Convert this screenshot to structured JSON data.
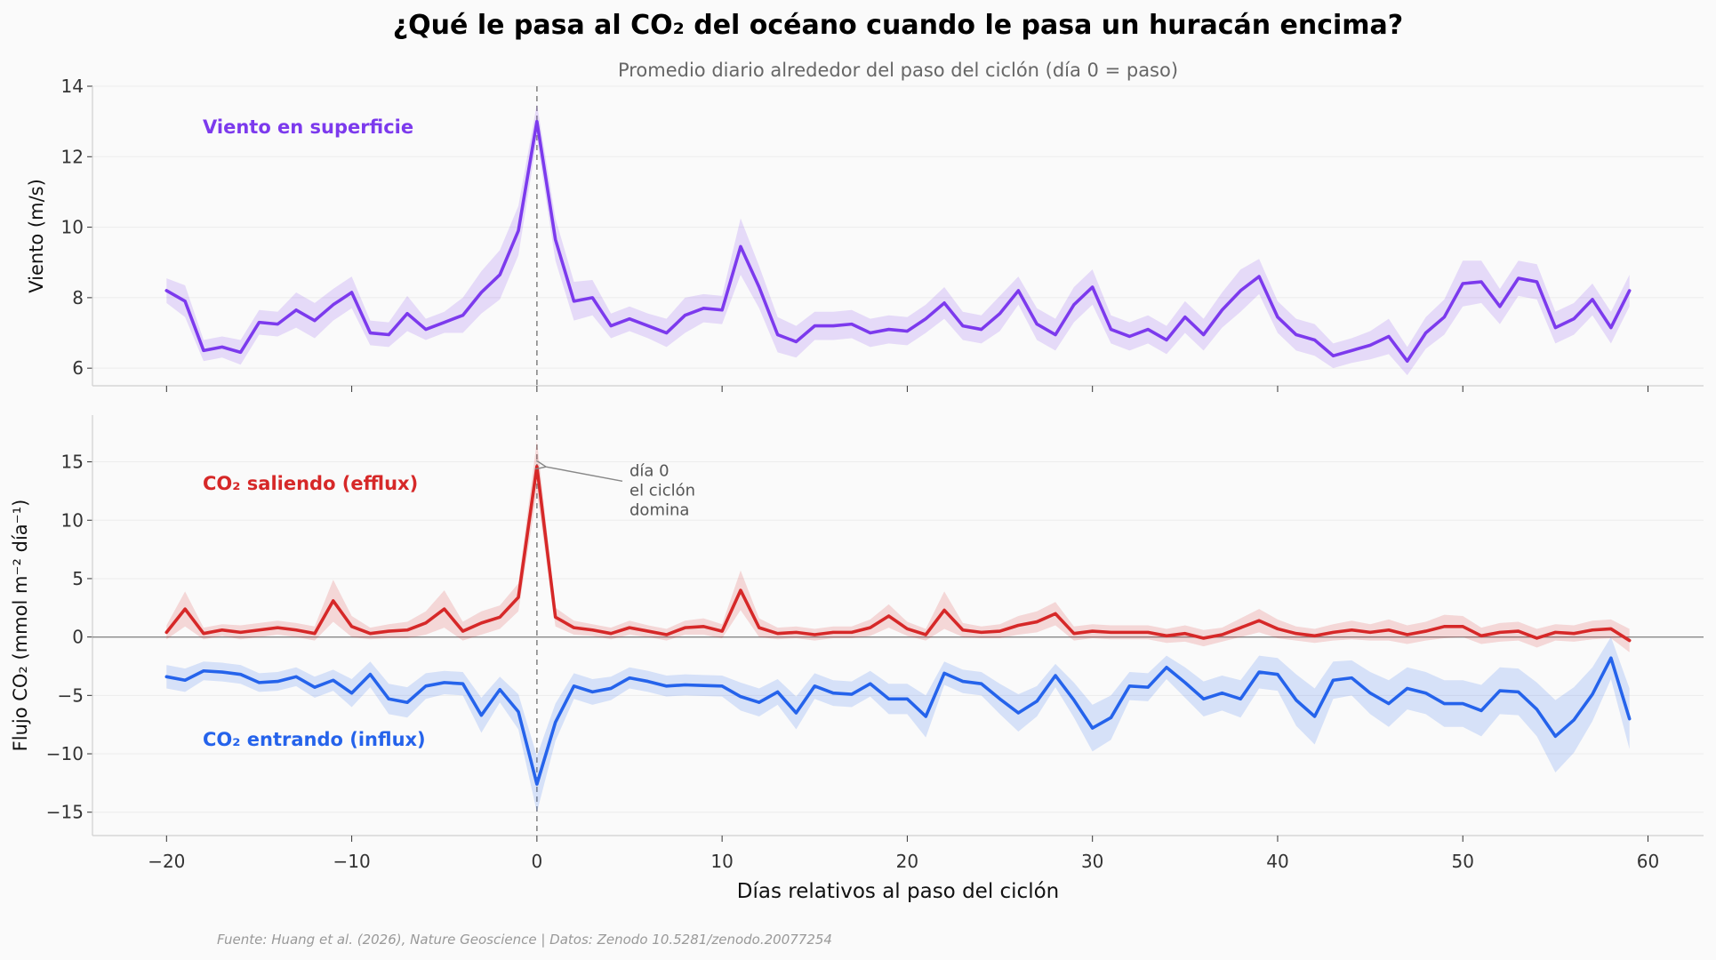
{
  "title": "¿Qué le pasa al CO₂ del océano cuando le pasa un huracán encima?",
  "subtitle": "Promedio diario alrededor del paso del ciclón (día 0 = paso)",
  "source": "Fuente: Huang et al. (2026), Nature Geoscience | Datos: Zenodo 10.5281/zenodo.20077254",
  "colors": {
    "wind": "#7c3aed",
    "efflux": "#d62828",
    "influx": "#2563eb"
  },
  "chart_data": [
    {
      "type": "line",
      "ylabel": "Viento (m/s)",
      "ylim": [
        5.5,
        14
      ],
      "yticks": [
        6,
        8,
        10,
        12,
        14
      ],
      "xlim": [
        -24,
        63
      ],
      "xticks": [
        -20,
        -10,
        0,
        10,
        20,
        30,
        40,
        50,
        60
      ],
      "grid": true,
      "x_start": -20,
      "vline": 0,
      "series": [
        {
          "name": "Viento en superficie",
          "values": [
            8.2,
            7.9,
            6.5,
            6.6,
            6.45,
            7.3,
            7.25,
            7.65,
            7.35,
            7.8,
            8.15,
            7.0,
            6.95,
            7.55,
            7.1,
            7.3,
            7.5,
            8.15,
            8.65,
            9.9,
            13.0,
            9.65,
            7.9,
            8.0,
            7.2,
            7.4,
            7.2,
            7.0,
            7.5,
            7.7,
            7.65,
            9.45,
            8.3,
            6.95,
            6.75,
            7.2,
            7.2,
            7.25,
            7.0,
            7.1,
            7.05,
            7.4,
            7.85,
            7.2,
            7.1,
            7.55,
            8.2,
            7.25,
            6.95,
            7.8,
            8.3,
            7.1,
            6.9,
            7.1,
            6.8,
            7.45,
            6.95,
            7.65,
            8.2,
            8.6,
            7.45,
            6.95,
            6.8,
            6.35,
            6.5,
            6.65,
            6.9,
            6.2,
            7.0,
            7.45,
            8.4,
            8.45,
            7.75,
            8.55,
            8.45,
            7.15,
            7.4,
            7.95,
            7.15,
            8.2
          ],
          "band": [
            0.35,
            0.45,
            0.3,
            0.3,
            0.35,
            0.35,
            0.35,
            0.5,
            0.5,
            0.45,
            0.45,
            0.35,
            0.35,
            0.5,
            0.3,
            0.3,
            0.5,
            0.6,
            0.7,
            0.7,
            0.5,
            0.6,
            0.55,
            0.5,
            0.35,
            0.35,
            0.35,
            0.4,
            0.5,
            0.4,
            0.4,
            0.8,
            0.6,
            0.5,
            0.45,
            0.4,
            0.4,
            0.4,
            0.4,
            0.4,
            0.4,
            0.4,
            0.45,
            0.4,
            0.4,
            0.5,
            0.4,
            0.45,
            0.45,
            0.5,
            0.5,
            0.4,
            0.4,
            0.4,
            0.4,
            0.45,
            0.45,
            0.5,
            0.6,
            0.5,
            0.45,
            0.45,
            0.45,
            0.35,
            0.35,
            0.4,
            0.5,
            0.4,
            0.45,
            0.5,
            0.65,
            0.6,
            0.5,
            0.5,
            0.5,
            0.45,
            0.45,
            0.45,
            0.45,
            0.45
          ]
        }
      ]
    },
    {
      "type": "line",
      "ylabel": "Flujo CO₂ (mmol m⁻² día⁻¹)",
      "ylim": [
        -17,
        19
      ],
      "yticks": [
        -15,
        -10,
        -5,
        0,
        5,
        10,
        15
      ],
      "xlim": [
        -24,
        63
      ],
      "xticks": [
        -20,
        -10,
        0,
        10,
        20,
        30,
        40,
        50,
        60
      ],
      "xlabel": "Días relativos al paso del ciclón",
      "grid": true,
      "x_start": -20,
      "vline": 0,
      "hline": 0,
      "annotation": {
        "lines": [
          "día 0",
          "el ciclón",
          "domina"
        ],
        "x": 0.3,
        "y": 14.6,
        "text_x": 5,
        "text_y": 13.8
      },
      "series": [
        {
          "name": "CO₂ saliendo (efflux)",
          "values": [
            0.4,
            2.4,
            0.3,
            0.6,
            0.4,
            0.6,
            0.8,
            0.6,
            0.3,
            3.1,
            0.9,
            0.3,
            0.5,
            0.6,
            1.2,
            2.4,
            0.5,
            1.2,
            1.7,
            3.4,
            14.6,
            1.7,
            0.8,
            0.6,
            0.3,
            0.8,
            0.5,
            0.2,
            0.8,
            0.9,
            0.5,
            4.0,
            0.8,
            0.3,
            0.4,
            0.2,
            0.4,
            0.4,
            0.8,
            1.8,
            0.7,
            0.2,
            2.3,
            0.6,
            0.4,
            0.5,
            1.0,
            1.3,
            2.0,
            0.3,
            0.5,
            0.4,
            0.4,
            0.4,
            0.1,
            0.3,
            -0.1,
            0.2,
            0.8,
            1.4,
            0.7,
            0.3,
            0.1,
            0.4,
            0.6,
            0.4,
            0.6,
            0.2,
            0.5,
            0.9,
            0.9,
            0.1,
            0.4,
            0.5,
            -0.1,
            0.4,
            0.3,
            0.6,
            0.7,
            -0.3
          ],
          "band": [
            0.6,
            1.5,
            0.5,
            0.5,
            0.6,
            0.6,
            0.6,
            0.6,
            0.6,
            1.8,
            0.9,
            0.5,
            0.6,
            0.7,
            1.0,
            1.6,
            0.8,
            1.0,
            1.0,
            1.2,
            2.2,
            0.8,
            0.6,
            0.5,
            0.5,
            0.6,
            0.5,
            0.5,
            0.6,
            0.7,
            0.6,
            1.7,
            0.8,
            0.5,
            0.5,
            0.5,
            0.5,
            0.5,
            0.7,
            1.0,
            0.6,
            0.5,
            1.6,
            0.6,
            0.5,
            0.6,
            0.8,
            0.9,
            1.0,
            0.6,
            0.6,
            0.6,
            0.6,
            0.6,
            0.6,
            0.7,
            0.7,
            0.6,
            0.8,
            1.0,
            0.8,
            0.6,
            0.6,
            0.7,
            0.8,
            0.7,
            0.9,
            0.8,
            0.8,
            1.0,
            0.9,
            0.7,
            0.8,
            0.8,
            0.8,
            0.7,
            0.7,
            0.8,
            0.8,
            1.0
          ]
        },
        {
          "name": "CO₂ entrando (influx)",
          "values": [
            -3.4,
            -3.7,
            -2.9,
            -3.0,
            -3.2,
            -3.9,
            -3.8,
            -3.4,
            -4.3,
            -3.7,
            -4.8,
            -3.2,
            -5.3,
            -5.6,
            -4.2,
            -3.9,
            -4.0,
            -6.7,
            -4.5,
            -6.4,
            -12.6,
            -7.3,
            -4.2,
            -4.7,
            -4.4,
            -3.5,
            -3.8,
            -4.2,
            -4.1,
            -4.15,
            -4.2,
            -5.1,
            -5.6,
            -4.7,
            -6.5,
            -4.2,
            -4.8,
            -4.9,
            -4.0,
            -5.3,
            -5.3,
            -6.8,
            -3.1,
            -3.8,
            -4.0,
            -5.3,
            -6.5,
            -5.5,
            -3.3,
            -5.4,
            -7.8,
            -6.9,
            -4.2,
            -4.3,
            -2.6,
            -3.9,
            -5.3,
            -4.8,
            -5.3,
            -3.0,
            -3.2,
            -5.4,
            -6.8,
            -3.7,
            -3.5,
            -4.8,
            -5.7,
            -4.4,
            -4.8,
            -5.7,
            -5.7,
            -6.3,
            -4.6,
            -4.7,
            -6.2,
            -8.5,
            -7.1,
            -4.9,
            -1.8,
            -7.0
          ],
          "band": [
            1.0,
            1.0,
            0.8,
            0.8,
            0.8,
            0.8,
            0.8,
            0.8,
            0.9,
            0.9,
            1.2,
            1.1,
            1.3,
            1.3,
            1.1,
            1.0,
            1.0,
            1.5,
            1.1,
            1.5,
            2.4,
            1.6,
            1.1,
            1.1,
            1.0,
            0.9,
            0.9,
            0.9,
            0.9,
            0.9,
            0.9,
            1.2,
            1.2,
            1.1,
            1.4,
            1.1,
            1.1,
            1.1,
            1.1,
            1.3,
            1.3,
            1.8,
            1.0,
            1.0,
            1.0,
            1.3,
            1.6,
            1.3,
            1.0,
            1.5,
            2.0,
            1.9,
            1.2,
            1.2,
            1.0,
            1.3,
            1.5,
            1.5,
            1.6,
            1.4,
            1.4,
            2.2,
            2.4,
            1.6,
            1.5,
            1.8,
            2.0,
            1.8,
            1.8,
            2.0,
            2.0,
            2.2,
            2.0,
            2.0,
            2.3,
            3.1,
            2.8,
            2.3,
            1.8,
            2.6
          ]
        }
      ]
    }
  ]
}
